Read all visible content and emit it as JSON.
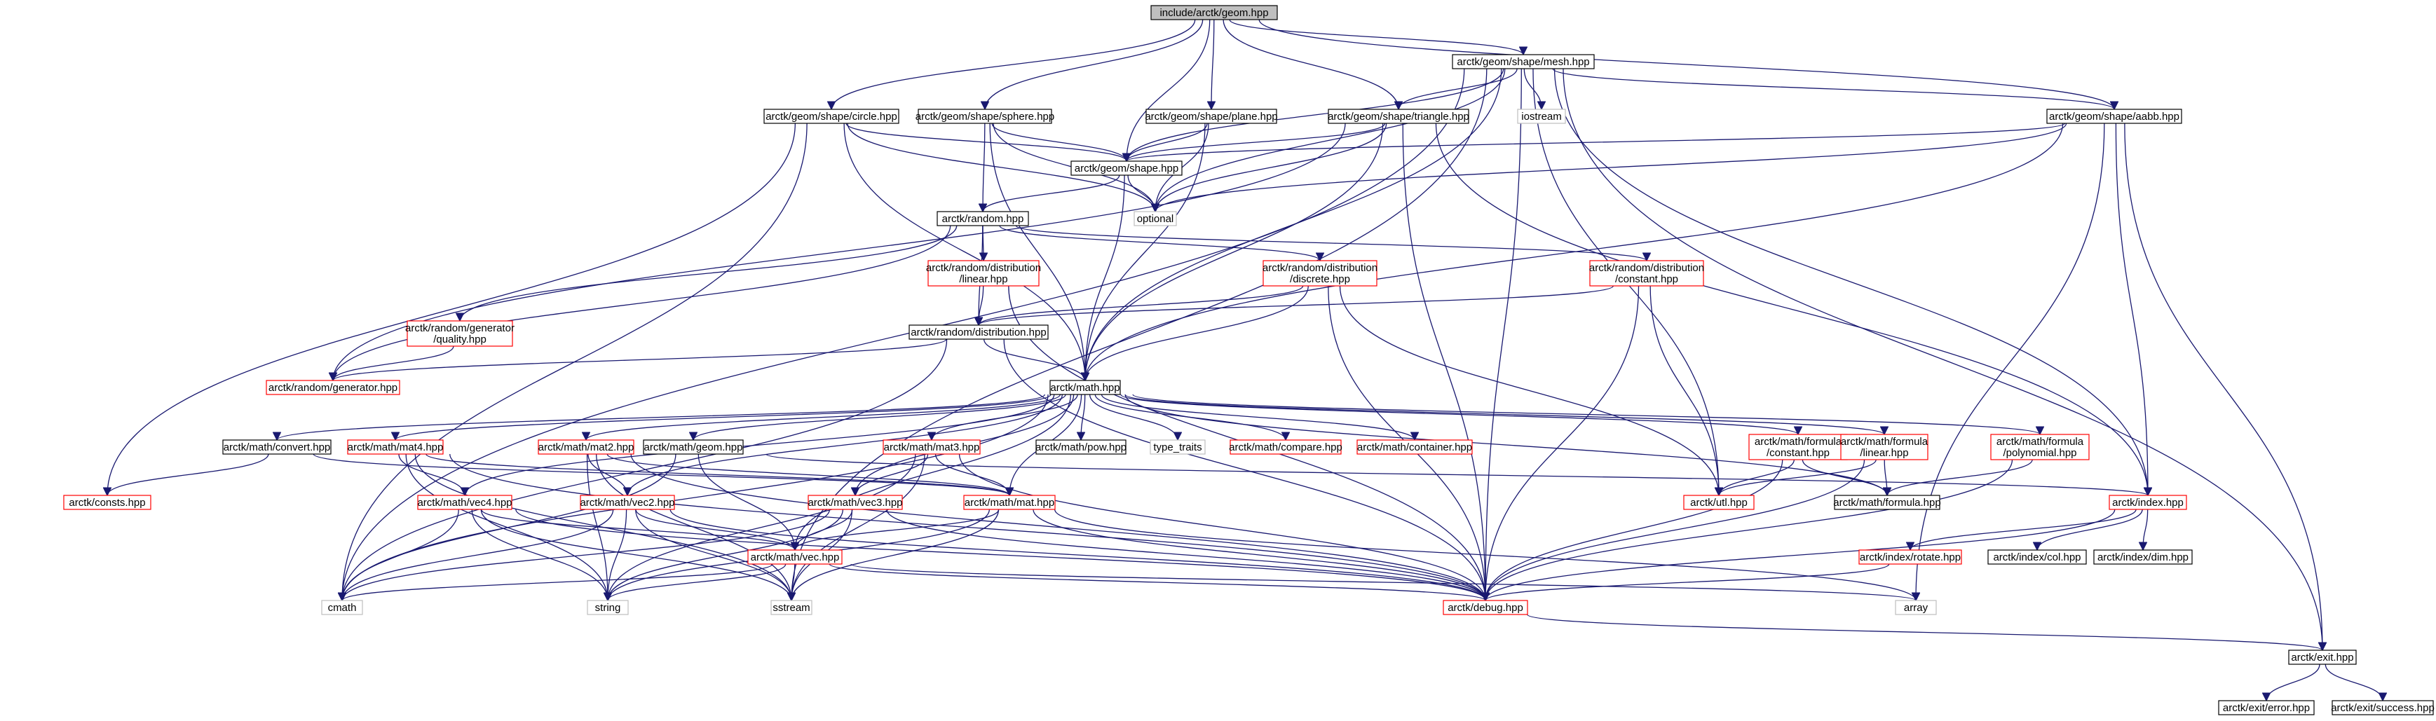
{
  "diagram": {
    "title": "include/arctk/geom.hpp",
    "colors": {
      "edge": "#191970",
      "root_fill": "#bfbfbf",
      "red_border": "#ff0000",
      "gray_border": "#bfbfbf",
      "black_border": "#000000"
    },
    "nodes": [
      {
        "id": "geom",
        "lines": [
          "include/arctk/geom.hpp"
        ],
        "style": "root"
      },
      {
        "id": "mesh",
        "lines": [
          "arctk/geom/shape/mesh.hpp"
        ],
        "style": "black"
      },
      {
        "id": "circle",
        "lines": [
          "arctk/geom/shape/circle.hpp"
        ],
        "style": "black"
      },
      {
        "id": "sphere",
        "lines": [
          "arctk/geom/shape/sphere.hpp"
        ],
        "style": "black"
      },
      {
        "id": "plane",
        "lines": [
          "arctk/geom/shape/plane.hpp"
        ],
        "style": "black"
      },
      {
        "id": "triangle",
        "lines": [
          "arctk/geom/shape/triangle.hpp"
        ],
        "style": "black"
      },
      {
        "id": "iostream",
        "lines": [
          "iostream"
        ],
        "style": "gray"
      },
      {
        "id": "aabb",
        "lines": [
          "arctk/geom/shape/aabb.hpp"
        ],
        "style": "black"
      },
      {
        "id": "shape",
        "lines": [
          "arctk/geom/shape.hpp"
        ],
        "style": "black"
      },
      {
        "id": "optional",
        "lines": [
          "optional"
        ],
        "style": "gray"
      },
      {
        "id": "random",
        "lines": [
          "arctk/random.hpp"
        ],
        "style": "black"
      },
      {
        "id": "dlinear",
        "lines": [
          "arctk/random/distribution",
          "/linear.hpp"
        ],
        "style": "red"
      },
      {
        "id": "ddiscrete",
        "lines": [
          "arctk/random/distribution",
          "/discrete.hpp"
        ],
        "style": "red"
      },
      {
        "id": "dconstant",
        "lines": [
          "arctk/random/distribution",
          "/constant.hpp"
        ],
        "style": "red"
      },
      {
        "id": "quality",
        "lines": [
          "arctk/random/generator",
          "/quality.hpp"
        ],
        "style": "red"
      },
      {
        "id": "distribution",
        "lines": [
          "arctk/random/distribution.hpp"
        ],
        "style": "black"
      },
      {
        "id": "generator",
        "lines": [
          "arctk/random/generator.hpp"
        ],
        "style": "red"
      },
      {
        "id": "math",
        "lines": [
          "arctk/math.hpp"
        ],
        "style": "black"
      },
      {
        "id": "convert",
        "lines": [
          "arctk/math/convert.hpp"
        ],
        "style": "black"
      },
      {
        "id": "mat4",
        "lines": [
          "arctk/math/mat4.hpp"
        ],
        "style": "red"
      },
      {
        "id": "mat2",
        "lines": [
          "arctk/math/mat2.hpp"
        ],
        "style": "red"
      },
      {
        "id": "mgeom",
        "lines": [
          "arctk/math/geom.hpp"
        ],
        "style": "black"
      },
      {
        "id": "mat3",
        "lines": [
          "arctk/math/mat3.hpp"
        ],
        "style": "red"
      },
      {
        "id": "pow",
        "lines": [
          "arctk/math/pow.hpp"
        ],
        "style": "black"
      },
      {
        "id": "type_traits",
        "lines": [
          "type_traits"
        ],
        "style": "gray"
      },
      {
        "id": "compare",
        "lines": [
          "arctk/math/compare.hpp"
        ],
        "style": "red"
      },
      {
        "id": "container",
        "lines": [
          "arctk/math/container.hpp"
        ],
        "style": "red"
      },
      {
        "id": "fconstant",
        "lines": [
          "arctk/math/formula",
          "/constant.hpp"
        ],
        "style": "red"
      },
      {
        "id": "flinear",
        "lines": [
          "arctk/math/formula",
          "/linear.hpp"
        ],
        "style": "red"
      },
      {
        "id": "fpoly",
        "lines": [
          "arctk/math/formula",
          "/polynomial.hpp"
        ],
        "style": "red"
      },
      {
        "id": "consts",
        "lines": [
          "arctk/consts.hpp"
        ],
        "style": "red"
      },
      {
        "id": "vec4",
        "lines": [
          "arctk/math/vec4.hpp"
        ],
        "style": "red"
      },
      {
        "id": "vec2",
        "lines": [
          "arctk/math/vec2.hpp"
        ],
        "style": "red"
      },
      {
        "id": "vec3",
        "lines": [
          "arctk/math/vec3.hpp"
        ],
        "style": "red"
      },
      {
        "id": "mat",
        "lines": [
          "arctk/math/mat.hpp"
        ],
        "style": "red"
      },
      {
        "id": "utl",
        "lines": [
          "arctk/utl.hpp"
        ],
        "style": "red"
      },
      {
        "id": "formula",
        "lines": [
          "arctk/math/formula.hpp"
        ],
        "style": "black"
      },
      {
        "id": "index",
        "lines": [
          "arctk/index.hpp"
        ],
        "style": "red"
      },
      {
        "id": "vec",
        "lines": [
          "arctk/math/vec.hpp"
        ],
        "style": "red"
      },
      {
        "id": "rotate",
        "lines": [
          "arctk/index/rotate.hpp"
        ],
        "style": "red"
      },
      {
        "id": "col",
        "lines": [
          "arctk/index/col.hpp"
        ],
        "style": "black"
      },
      {
        "id": "dim",
        "lines": [
          "arctk/index/dim.hpp"
        ],
        "style": "black"
      },
      {
        "id": "cmath",
        "lines": [
          "cmath"
        ],
        "style": "gray"
      },
      {
        "id": "string",
        "lines": [
          "string"
        ],
        "style": "gray"
      },
      {
        "id": "sstream",
        "lines": [
          "sstream"
        ],
        "style": "gray"
      },
      {
        "id": "debug",
        "lines": [
          "arctk/debug.hpp"
        ],
        "style": "red"
      },
      {
        "id": "array",
        "lines": [
          "array"
        ],
        "style": "gray"
      },
      {
        "id": "exit",
        "lines": [
          "arctk/exit.hpp"
        ],
        "style": "black"
      },
      {
        "id": "error",
        "lines": [
          "arctk/exit/error.hpp"
        ],
        "style": "black"
      },
      {
        "id": "success",
        "lines": [
          "arctk/exit/success.hpp"
        ],
        "style": "black"
      }
    ],
    "edges": [
      [
        "geom",
        "mesh"
      ],
      [
        "geom",
        "circle"
      ],
      [
        "geom",
        "sphere"
      ],
      [
        "geom",
        "plane"
      ],
      [
        "geom",
        "triangle"
      ],
      [
        "geom",
        "aabb"
      ],
      [
        "geom",
        "shape"
      ],
      [
        "mesh",
        "iostream"
      ],
      [
        "mesh",
        "shape"
      ],
      [
        "mesh",
        "optional"
      ],
      [
        "mesh",
        "triangle"
      ],
      [
        "mesh",
        "aabb"
      ],
      [
        "mesh",
        "math"
      ],
      [
        "mesh",
        "utl"
      ],
      [
        "mesh",
        "index"
      ],
      [
        "mesh",
        "sstream"
      ],
      [
        "mesh",
        "cmath"
      ],
      [
        "mesh",
        "exit"
      ],
      [
        "mesh",
        "debug"
      ],
      [
        "circle",
        "shape"
      ],
      [
        "circle",
        "optional"
      ],
      [
        "circle",
        "math"
      ],
      [
        "circle",
        "consts"
      ],
      [
        "circle",
        "cmath"
      ],
      [
        "sphere",
        "shape"
      ],
      [
        "sphere",
        "optional"
      ],
      [
        "sphere",
        "random"
      ],
      [
        "sphere",
        "math"
      ],
      [
        "plane",
        "shape"
      ],
      [
        "plane",
        "optional"
      ],
      [
        "plane",
        "math"
      ],
      [
        "triangle",
        "shape"
      ],
      [
        "triangle",
        "optional"
      ],
      [
        "triangle",
        "math"
      ],
      [
        "triangle",
        "generator"
      ],
      [
        "triangle",
        "debug"
      ],
      [
        "triangle",
        "index"
      ],
      [
        "aabb",
        "shape"
      ],
      [
        "aabb",
        "optional"
      ],
      [
        "aabb",
        "math"
      ],
      [
        "aabb",
        "index"
      ],
      [
        "aabb",
        "array"
      ],
      [
        "aabb",
        "exit"
      ],
      [
        "shape",
        "optional"
      ],
      [
        "shape",
        "random"
      ],
      [
        "shape",
        "math"
      ],
      [
        "random",
        "dlinear"
      ],
      [
        "random",
        "ddiscrete"
      ],
      [
        "random",
        "dconstant"
      ],
      [
        "random",
        "quality"
      ],
      [
        "random",
        "distribution"
      ],
      [
        "random",
        "generator"
      ],
      [
        "dlinear",
        "distribution"
      ],
      [
        "dlinear",
        "debug"
      ],
      [
        "ddiscrete",
        "distribution"
      ],
      [
        "ddiscrete",
        "math"
      ],
      [
        "ddiscrete",
        "utl"
      ],
      [
        "ddiscrete",
        "debug"
      ],
      [
        "dconstant",
        "distribution"
      ],
      [
        "dconstant",
        "utl"
      ],
      [
        "dconstant",
        "debug"
      ],
      [
        "quality",
        "generator"
      ],
      [
        "distribution",
        "generator"
      ],
      [
        "distribution",
        "math"
      ],
      [
        "distribution",
        "cmath"
      ],
      [
        "distribution",
        "debug"
      ],
      [
        "math",
        "convert"
      ],
      [
        "math",
        "mat4"
      ],
      [
        "math",
        "mat2"
      ],
      [
        "math",
        "mgeom"
      ],
      [
        "math",
        "mat3"
      ],
      [
        "math",
        "pow"
      ],
      [
        "math",
        "type_traits"
      ],
      [
        "math",
        "compare"
      ],
      [
        "math",
        "container"
      ],
      [
        "math",
        "fconstant"
      ],
      [
        "math",
        "flinear"
      ],
      [
        "math",
        "fpoly"
      ],
      [
        "math",
        "vec4"
      ],
      [
        "math",
        "vec2"
      ],
      [
        "math",
        "vec3"
      ],
      [
        "math",
        "mat"
      ],
      [
        "math",
        "vec"
      ],
      [
        "math",
        "formula"
      ],
      [
        "math",
        "cmath"
      ],
      [
        "convert",
        "consts"
      ],
      [
        "convert",
        "mat"
      ],
      [
        "mat4",
        "vec4"
      ],
      [
        "mat4",
        "mat"
      ],
      [
        "mat4",
        "string"
      ],
      [
        "mat4",
        "sstream"
      ],
      [
        "mat4",
        "debug"
      ],
      [
        "mat2",
        "vec2"
      ],
      [
        "mat2",
        "mat"
      ],
      [
        "mat2",
        "string"
      ],
      [
        "mat2",
        "sstream"
      ],
      [
        "mat2",
        "debug"
      ],
      [
        "mgeom",
        "vec"
      ],
      [
        "mgeom",
        "index"
      ],
      [
        "mgeom",
        "cmath"
      ],
      [
        "mat3",
        "vec3"
      ],
      [
        "mat3",
        "mat"
      ],
      [
        "mat3",
        "string"
      ],
      [
        "mat3",
        "sstream"
      ],
      [
        "mat3",
        "debug"
      ],
      [
        "fconstant",
        "utl"
      ],
      [
        "fconstant",
        "formula"
      ],
      [
        "fconstant",
        "debug"
      ],
      [
        "flinear",
        "utl"
      ],
      [
        "flinear",
        "formula"
      ],
      [
        "flinear",
        "debug"
      ],
      [
        "fpoly",
        "formula"
      ],
      [
        "fpoly",
        "debug"
      ],
      [
        "vec4",
        "vec"
      ],
      [
        "vec4",
        "cmath"
      ],
      [
        "vec4",
        "string"
      ],
      [
        "vec4",
        "sstream"
      ],
      [
        "vec4",
        "debug"
      ],
      [
        "vec2",
        "vec"
      ],
      [
        "vec2",
        "cmath"
      ],
      [
        "vec2",
        "string"
      ],
      [
        "vec2",
        "sstream"
      ],
      [
        "vec2",
        "debug"
      ],
      [
        "vec3",
        "vec"
      ],
      [
        "vec3",
        "cmath"
      ],
      [
        "vec3",
        "string"
      ],
      [
        "vec3",
        "sstream"
      ],
      [
        "vec3",
        "debug"
      ],
      [
        "mat",
        "vec"
      ],
      [
        "mat",
        "string"
      ],
      [
        "mat",
        "sstream"
      ],
      [
        "mat",
        "array"
      ],
      [
        "mat",
        "debug"
      ],
      [
        "vec",
        "cmath"
      ],
      [
        "vec",
        "string"
      ],
      [
        "vec",
        "sstream"
      ],
      [
        "vec",
        "array"
      ],
      [
        "vec",
        "debug"
      ],
      [
        "index",
        "rotate"
      ],
      [
        "index",
        "col"
      ],
      [
        "index",
        "dim"
      ],
      [
        "index",
        "debug"
      ],
      [
        "rotate",
        "debug"
      ],
      [
        "debug",
        "exit"
      ],
      [
        "exit",
        "error"
      ],
      [
        "exit",
        "success"
      ]
    ]
  }
}
